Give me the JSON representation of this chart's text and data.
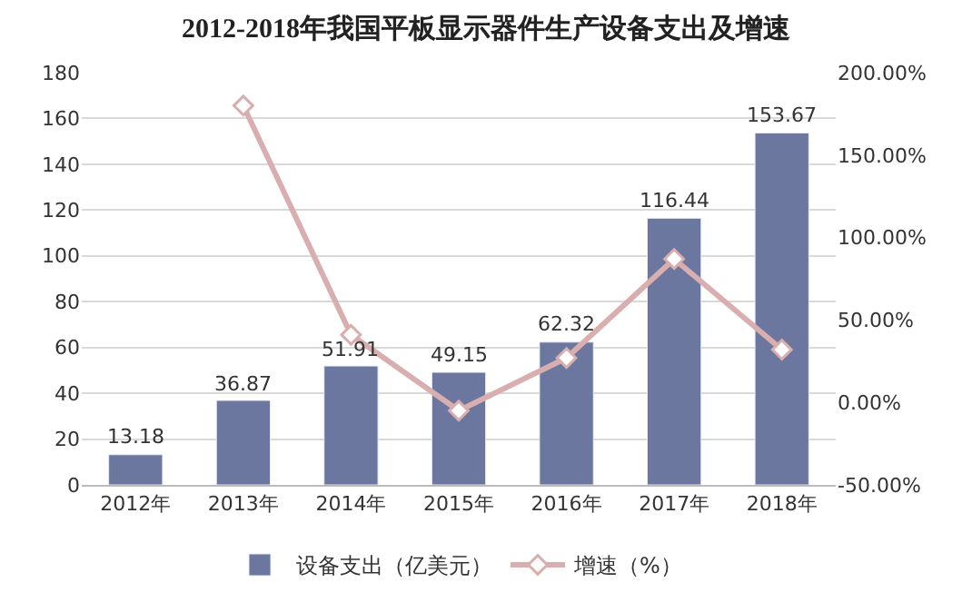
{
  "chart_data": {
    "type": "bar",
    "title": "2012-2018年我国平板显示器件生产设备支出及增速",
    "categories": [
      "2012年",
      "2013年",
      "2014年",
      "2015年",
      "2016年",
      "2017年",
      "2018年"
    ],
    "series": [
      {
        "name": "设备支出（亿美元）",
        "color": "#6b779e",
        "values": [
          13.18,
          36.87,
          51.91,
          49.15,
          62.32,
          116.44,
          153.67
        ],
        "value_labels": [
          "13.18",
          "36.87",
          "51.91",
          "49.15",
          "62.32",
          "116.44",
          "153.67"
        ]
      },
      {
        "name": "增速（%）",
        "type": "line",
        "axis": "y2",
        "color": "#d9aeae",
        "marker": "diamond",
        "values": [
          null,
          180,
          41,
          -5,
          27,
          87,
          32
        ]
      }
    ],
    "ylim": [
      0,
      180
    ],
    "yticks": [
      0,
      20,
      40,
      60,
      80,
      100,
      120,
      140,
      160,
      180
    ],
    "y2lim": [
      -50,
      200
    ],
    "y2ticks": [
      {
        "value": -50,
        "label": "-50.00%"
      },
      {
        "value": 0,
        "label": "0.00%"
      },
      {
        "value": 50,
        "label": "50.00%"
      },
      {
        "value": 100,
        "label": "100.00%"
      },
      {
        "value": 150,
        "label": "150.00%"
      },
      {
        "value": 200,
        "label": "200.00%"
      }
    ],
    "grid": "y",
    "legend": "bottom"
  }
}
